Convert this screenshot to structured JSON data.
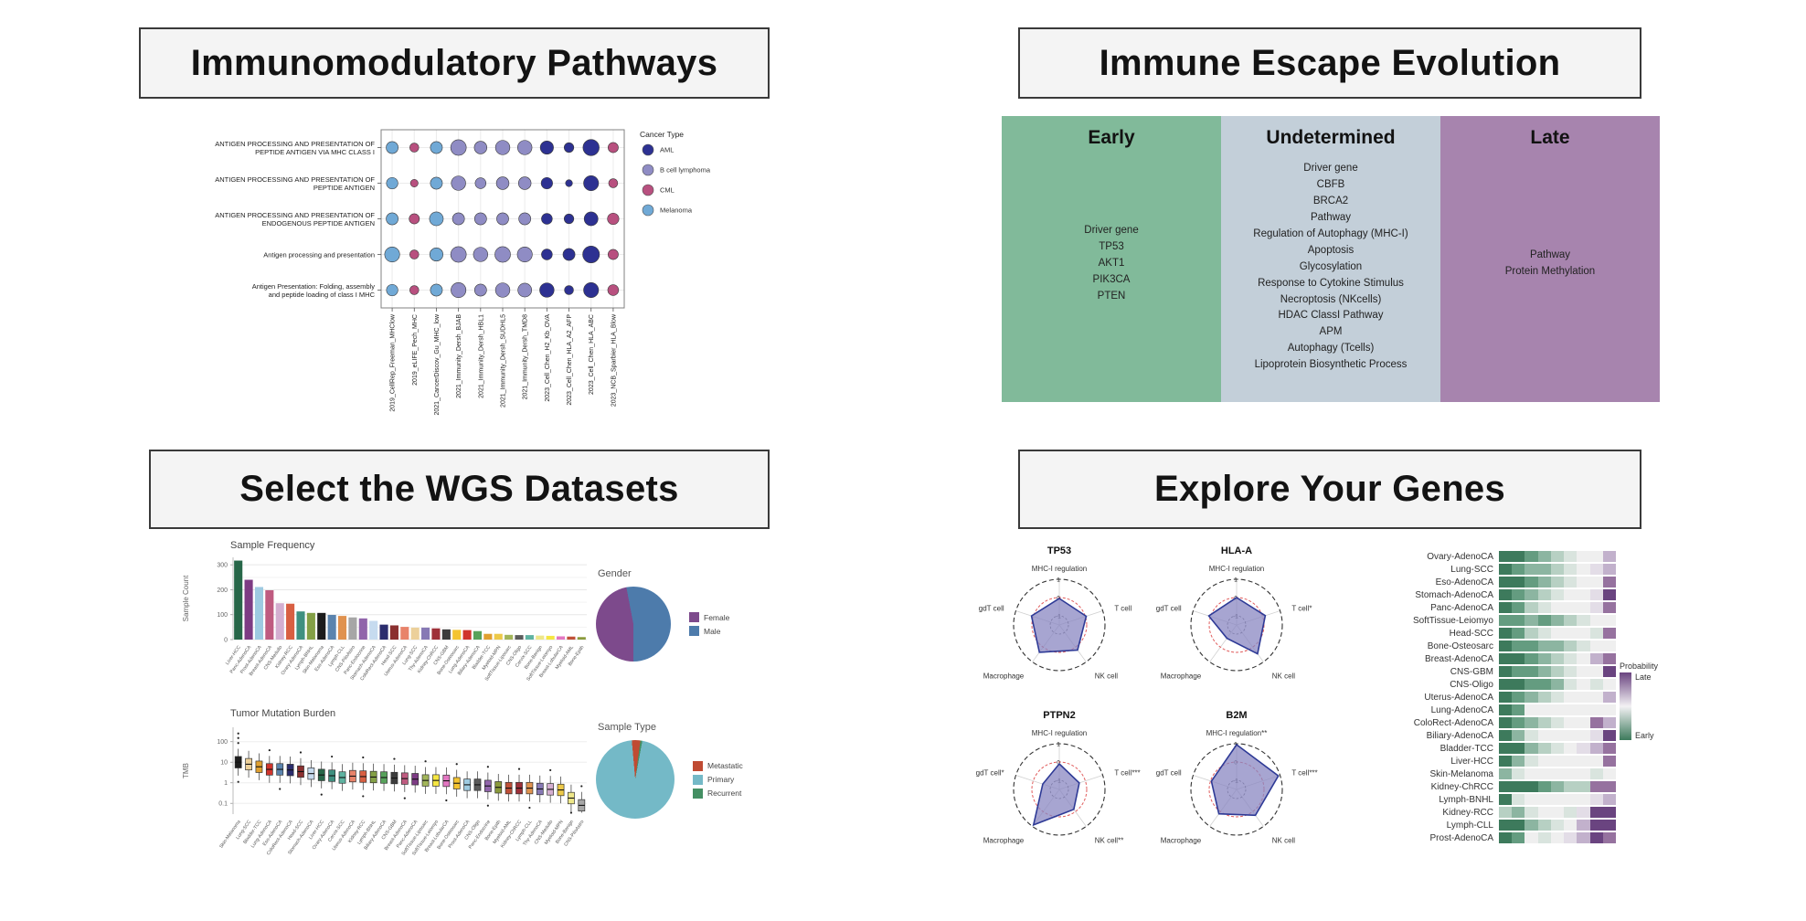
{
  "panels": {
    "header_tl": {
      "title": "Immunomodulatory Pathways"
    },
    "header_tr": {
      "title": "Immune Escape Evolution"
    },
    "header_bl": {
      "title": "Select the WGS Datasets"
    },
    "header_br": {
      "title": "Explore Your Genes"
    },
    "immune_escape": {
      "columns": [
        {
          "header": "Early",
          "color": "#81ba9a",
          "valign": "middle",
          "lines": [
            "Driver gene",
            "TP53",
            "AKT1",
            "PIK3CA",
            "PTEN"
          ]
        },
        {
          "header": "Undetermined",
          "color": "#c3cfd9",
          "valign": "top",
          "lines": [
            "Driver gene",
            "CBFB",
            "BRCA2",
            "Pathway",
            "Regulation of Autophagy (MHC-I)",
            "Apoptosis",
            "Glycosylation",
            "Response to Cytokine Stimulus",
            "Necroptosis (NKcells)",
            "HDAC ClassI Pathway",
            "APM",
            "Autophagy (Tcells)",
            "Lipoprotein Biosynthetic Process"
          ]
        },
        {
          "header": "Late",
          "color": "#a784ae",
          "valign": "middle",
          "lines": [
            "Pathway",
            "Protein Methylation"
          ]
        }
      ]
    }
  },
  "chart_data": [
    {
      "id": "pathway_dotplot",
      "type": "scatter",
      "title": "",
      "rows": [
        "ANTIGEN PROCESSING AND PRESENTATION OF PEPTIDE ANTIGEN VIA MHC CLASS I",
        "ANTIGEN PROCESSING AND PRESENTATION OF PEPTIDE ANTIGEN",
        "ANTIGEN PROCESSING AND PRESENTATION OF ENDOGENOUS PEPTIDE ANTIGEN",
        "Antigen processing and presentation",
        "Antigen Presentation: Folding, assembly and peptide loading of class I MHC"
      ],
      "row_lines": [
        [
          "ANTIGEN PROCESSING AND PRESENTATION OF",
          "PEPTIDE ANTIGEN VIA MHC CLASS I"
        ],
        [
          "ANTIGEN PROCESSING AND PRESENTATION OF",
          "PEPTIDE ANTIGEN"
        ],
        [
          "ANTIGEN PROCESSING AND PRESENTATION OF",
          "ENDOGENOUS PEPTIDE ANTIGEN"
        ],
        [
          "Antigen processing and presentation"
        ],
        [
          "Antigen Presentation: Folding, assembly",
          "and peptide loading of class I MHC"
        ]
      ],
      "columns": [
        "2019_CellRep_Freeman_MHClow",
        "2019_eLIFE_Pech_MHC",
        "2021_CancerDiscov_Gu_MHC_low",
        "2021_Immunity_Dersh_BJAB",
        "2021_Immunity_Dersh_HBL1",
        "2021_Immunity_Dersh_SUDHL5",
        "2021_Immunity_Dersh_TMD8",
        "2023_Cell_Chen_H2_Kb_OVA",
        "2023_Cell_Chen_HLA_A2_AFP",
        "2023_Cell_Chen_HLA_ABC",
        "2023_NCB_Sparbier_HLA_Blow"
      ],
      "column_cancer_type": [
        "Melanoma",
        "CML",
        "Melanoma",
        "B cell lymphoma",
        "B cell lymphoma",
        "B cell lymphoma",
        "B cell lymphoma",
        "AML",
        "AML",
        "AML",
        "CML"
      ],
      "legend_title": "Cancer Type",
      "legend": [
        {
          "label": "AML",
          "color": "#2d3192"
        },
        {
          "label": "B cell lymphoma",
          "color": "#8f8cc4"
        },
        {
          "label": "CML",
          "color": "#b8507f"
        },
        {
          "label": "Melanoma",
          "color": "#70a9d6"
        }
      ],
      "sizes": [
        [
          0.55,
          0.3,
          0.55,
          0.85,
          0.6,
          0.75,
          0.75,
          0.65,
          0.35,
          0.9,
          0.4
        ],
        [
          0.5,
          0.18,
          0.55,
          0.75,
          0.45,
          0.6,
          0.6,
          0.5,
          0.12,
          0.8,
          0.3
        ],
        [
          0.55,
          0.4,
          0.7,
          0.55,
          0.55,
          0.55,
          0.55,
          0.45,
          0.35,
          0.7,
          0.5
        ],
        [
          0.8,
          0.3,
          0.65,
          0.85,
          0.75,
          0.85,
          0.8,
          0.45,
          0.55,
          0.95,
          0.4
        ],
        [
          0.5,
          0.3,
          0.55,
          0.8,
          0.55,
          0.75,
          0.7,
          0.75,
          0.3,
          0.8,
          0.45
        ]
      ]
    },
    {
      "id": "sample_frequency",
      "type": "bar",
      "title": "Sample Frequency",
      "ylabel": "Sample Count",
      "yticks": [
        0,
        100,
        200,
        300
      ],
      "ylim": [
        0,
        330
      ],
      "categories": [
        "Liver-HCC",
        "Panc-AdenoCA",
        "Prost-AdenoCA",
        "Breast-AdenoCA",
        "CNS-Medullo",
        "Kidney-RCC",
        "Ovary-AdenoCA",
        "Lymph-BNHL",
        "Skin-Melanoma",
        "Eso-AdenoCA",
        "Lymph-CLL",
        "CNS-PiloAstro",
        "Panc-Endocrine",
        "Stomach-AdenoCA",
        "ColoRect-AdenoCA",
        "Head-SCC",
        "Uterus-AdenoCA",
        "Lung-SCC",
        "Thy-AdenoCA",
        "Kidney-ChRCC",
        "CNS-GBM",
        "Bone-Osteosarc",
        "Lung-AdenoCA",
        "Biliary-AdenoCA",
        "Bladder-TCC",
        "Myeloid-MPN",
        "SoftTissue-Liposarc",
        "CNS-Oligo",
        "Cervix-SCC",
        "Bone-Benign",
        "SoftTissue-Leiomyo",
        "Breast-LobularCA",
        "Myeloid-AML",
        "Bone-Epith"
      ],
      "values": [
        317,
        240,
        211,
        198,
        146,
        144,
        113,
        107,
        107,
        99,
        95,
        89,
        85,
        75,
        60,
        57,
        51,
        48,
        48,
        45,
        41,
        39,
        38,
        34,
        23,
        23,
        19,
        18,
        18,
        16,
        15,
        13,
        12,
        10
      ],
      "colors": [
        "#276749",
        "#7d3c84",
        "#9ecae1",
        "#bf5b80",
        "#d4aed0",
        "#d85f42",
        "#3f9080",
        "#84a046",
        "#1c1c1c",
        "#5b84ae",
        "#e0924f",
        "#a6a6a6",
        "#9165ab",
        "#c6dbef",
        "#2b2d6e",
        "#8b3030",
        "#e8836a",
        "#ecd09a",
        "#8779b5",
        "#9e3039",
        "#3c3c3c",
        "#f4c430",
        "#d0342c",
        "#57a25b",
        "#e0a030",
        "#edc948",
        "#a2b55a",
        "#5b5b5b",
        "#5fb3a1",
        "#eee789",
        "#f5e642",
        "#e377c2",
        "#c05038",
        "#8a9a3c"
      ]
    },
    {
      "id": "gender_pie",
      "type": "pie",
      "title": "Gender",
      "from_deg": 180,
      "slices": [
        {
          "label": "Female",
          "value": 47,
          "color": "#7d4a8c"
        },
        {
          "label": "Male",
          "value": 53,
          "color": "#4d7bab"
        }
      ],
      "legend_order": [
        0,
        1
      ]
    },
    {
      "id": "tmb_boxplot",
      "type": "boxplot",
      "title": "Tumor Mutation Burden",
      "ylabel": "TMB",
      "log_scale": true,
      "yticks": [
        0.1,
        1,
        10,
        100
      ],
      "categories": [
        "Skin-Melanoma",
        "Lung-SCC",
        "Bladder-TCC",
        "Lung-AdenoCA",
        "Eso-AdenoCA",
        "ColoRect-AdenoCA",
        "Head-SCC",
        "Stomach-AdenoCA",
        "Liver-HCC",
        "Ovary-AdenoCA",
        "Cervix-SCC",
        "Uterus-AdenoCA",
        "Kidney-RCC",
        "Lymph-BNHL",
        "Biliary-AdenoCA",
        "CNS-GBM",
        "Breast-AdenoCA",
        "Panc-AdenoCA",
        "SoftTissue-Liposarc",
        "SoftTissue-Leiomyo",
        "Breast-LobularCA",
        "Bone-Osteosarc",
        "Prost-AdenoCA",
        "CNS-Oligo",
        "Panc-Endocrine",
        "Bone-Epith",
        "Myeloid-AML",
        "Kidney-ChRCC",
        "Lymph-CLL",
        "Thy-AdenoCA",
        "CNS-Medullo",
        "Myeloid-MPN",
        "Bone-Benign",
        "CNS-PiloAstro"
      ],
      "medians": [
        10,
        8,
        6,
        4.5,
        4.5,
        4.2,
        3.5,
        2.8,
        2.4,
        2.2,
        1.8,
        2.1,
        2.0,
        1.9,
        1.8,
        1.7,
        1.6,
        1.5,
        1.3,
        1.3,
        1.25,
        0.95,
        0.8,
        0.8,
        0.7,
        0.6,
        0.55,
        0.55,
        0.55,
        0.5,
        0.48,
        0.45,
        0.18,
        0.08
      ],
      "colors": [
        "#1c1c1c",
        "#ecd09a",
        "#e0a030",
        "#d0342c",
        "#5b84ae",
        "#2b2d6e",
        "#8b3030",
        "#c6dbef",
        "#276749",
        "#3f9080",
        "#5fb3a1",
        "#e8836a",
        "#d85f42",
        "#84a046",
        "#57a25b",
        "#3c3c3c",
        "#bf5b80",
        "#7d3c84",
        "#a2b55a",
        "#f5e642",
        "#e377c2",
        "#f4c430",
        "#9ecae1",
        "#5b5b5b",
        "#9165ab",
        "#8a9a3c",
        "#c05038",
        "#9e3039",
        "#e0924f",
        "#8779b5",
        "#d4aed0",
        "#edc948",
        "#eee789",
        "#a6a6a6"
      ]
    },
    {
      "id": "sample_type_pie",
      "type": "pie",
      "title": "Sample Type",
      "from_deg": -5,
      "slices": [
        {
          "label": "Metastatic",
          "value": 3.5,
          "color": "#c04b33"
        },
        {
          "label": "Recurrent",
          "value": 0.8,
          "color": "#448f63"
        },
        {
          "label": "Primary",
          "value": 95.7,
          "color": "#74b9c7"
        }
      ],
      "legend_order": [
        0,
        2,
        1
      ]
    },
    {
      "id": "radar_tp53",
      "type": "radar",
      "title": "TP53",
      "axes": [
        "MHC-I regulation",
        "T cell",
        "NK cell",
        "Macrophage",
        "gdT cell"
      ],
      "values": [
        -0.05,
        0.05,
        0.2,
        0.35,
        0.1
      ],
      "ticks": [
        "1",
        "0",
        "-1"
      ],
      "range": [
        -1.5,
        1
      ]
    },
    {
      "id": "radar_hlaa",
      "type": "radar",
      "title": "HLA-A",
      "axes": [
        "MHC-I regulation",
        "T cell*",
        "NK cell",
        "Macrophage",
        "gdT cell"
      ],
      "values": [
        0.0,
        0.15,
        0.45,
        -0.6,
        0.1
      ],
      "ticks": [
        "1",
        "0",
        "-1"
      ],
      "range": [
        -1.5,
        1
      ]
    },
    {
      "id": "radar_ptpn2",
      "type": "radar",
      "title": "PTPN2",
      "axes": [
        "MHC-I regulation",
        "T cell***",
        "NK cell**",
        "Macrophage",
        "gdT cell*"
      ],
      "values": [
        -0.1,
        -0.35,
        -0.15,
        0.9,
        -0.55
      ],
      "ticks": [
        "1",
        "0",
        "-1"
      ],
      "range": [
        -1.5,
        1
      ]
    },
    {
      "id": "radar_b2m",
      "type": "radar",
      "title": "B2M",
      "axes": [
        "MHC-I regulation**",
        "T cell***",
        "NK cell",
        "Macrophage",
        "gdT cell"
      ],
      "values": [
        0.95,
        0.9,
        0.25,
        0.15,
        -0.05
      ],
      "ticks": [
        "1",
        "0",
        "-1"
      ],
      "range": [
        -1.5,
        1
      ]
    },
    {
      "id": "probability_bars",
      "type": "heatmap",
      "legend": {
        "title": "Probability",
        "top_label": "Late",
        "bottom_label": "Early",
        "top_color": "#6a4480",
        "mid_color": "#f3f1f4",
        "bottom_color": "#3d7a5c"
      },
      "palette": {
        "dg": "#3d7a5c",
        "g": "#649c80",
        "mg": "#8cb5a1",
        "lg": "#b7d0c3",
        "vl": "#d9e4de",
        "w": "#efefef",
        "wp": "#e3dde7",
        "lp": "#c2b1cc",
        "p": "#96729f",
        "dp": "#6a4480"
      },
      "categories": [
        "Ovary-AdenoCA",
        "Lung-SCC",
        "Eso-AdenoCA",
        "Stomach-AdenoCA",
        "Panc-AdenoCA",
        "SoftTissue-Leiomyo",
        "Head-SCC",
        "Bone-Osteosarc",
        "Breast-AdenoCA",
        "CNS-GBM",
        "CNS-Oligo",
        "Uterus-AdenoCA",
        "Lung-AdenoCA",
        "ColoRect-AdenoCA",
        "Biliary-AdenoCA",
        "Bladder-TCC",
        "Liver-HCC",
        "Skin-Melanoma",
        "Kidney-ChRCC",
        "Lymph-BNHL",
        "Kidney-RCC",
        "Lymph-CLL",
        "Prost-AdenoCA"
      ],
      "rows": [
        [
          "dg",
          "dg",
          "g",
          "mg",
          "lg",
          "vl",
          "w",
          "w",
          "lp"
        ],
        [
          "dg",
          "g",
          "mg",
          "mg",
          "lg",
          "vl",
          "w",
          "wp",
          "lp"
        ],
        [
          "dg",
          "dg",
          "g",
          "mg",
          "lg",
          "vl",
          "w",
          "w",
          "p"
        ],
        [
          "dg",
          "g",
          "mg",
          "lg",
          "vl",
          "w",
          "w",
          "wp",
          "dp"
        ],
        [
          "dg",
          "g",
          "lg",
          "vl",
          "w",
          "w",
          "w",
          "wp",
          "p"
        ],
        [
          "g",
          "g",
          "mg",
          "g",
          "mg",
          "lg",
          "vl",
          "w",
          "w"
        ],
        [
          "dg",
          "g",
          "lg",
          "vl",
          "w",
          "w",
          "w",
          "vl",
          "p"
        ],
        [
          "dg",
          "g",
          "g",
          "mg",
          "mg",
          "lg",
          "vl",
          "w",
          "w"
        ],
        [
          "dg",
          "dg",
          "g",
          "mg",
          "lg",
          "vl",
          "w",
          "lp",
          "p"
        ],
        [
          "dg",
          "g",
          "g",
          "mg",
          "lg",
          "vl",
          "w",
          "w",
          "dp"
        ],
        [
          "dg",
          "dg",
          "g",
          "g",
          "mg",
          "vl",
          "w",
          "vl",
          "w"
        ],
        [
          "dg",
          "g",
          "mg",
          "lg",
          "vl",
          "w",
          "w",
          "w",
          "lp"
        ],
        [
          "dg",
          "g",
          "w",
          "w",
          "w",
          "w",
          "w",
          "w",
          "w"
        ],
        [
          "dg",
          "g",
          "mg",
          "lg",
          "vl",
          "w",
          "w",
          "p",
          "lp"
        ],
        [
          "dg",
          "mg",
          "vl",
          "w",
          "w",
          "w",
          "w",
          "wp",
          "dp"
        ],
        [
          "dg",
          "dg",
          "mg",
          "lg",
          "vl",
          "w",
          "wp",
          "lp",
          "p"
        ],
        [
          "dg",
          "mg",
          "vl",
          "w",
          "w",
          "w",
          "w",
          "w",
          "p"
        ],
        [
          "mg",
          "vl",
          "w",
          "w",
          "w",
          "w",
          "w",
          "vl",
          "w"
        ],
        [
          "dg",
          "dg",
          "dg",
          "g",
          "mg",
          "lg",
          "lg",
          "p",
          "p"
        ],
        [
          "dg",
          "vl",
          "w",
          "w",
          "w",
          "w",
          "w",
          "wp",
          "lp"
        ],
        [
          "lg",
          "mg",
          "vl",
          "w",
          "w",
          "vl",
          "wp",
          "dp",
          "dp"
        ],
        [
          "dg",
          "dg",
          "mg",
          "lg",
          "vl",
          "w",
          "lp",
          "dp",
          "dp"
        ],
        [
          "dg",
          "g",
          "w",
          "vl",
          "w",
          "wp",
          "lp",
          "dp",
          "p"
        ]
      ]
    }
  ]
}
